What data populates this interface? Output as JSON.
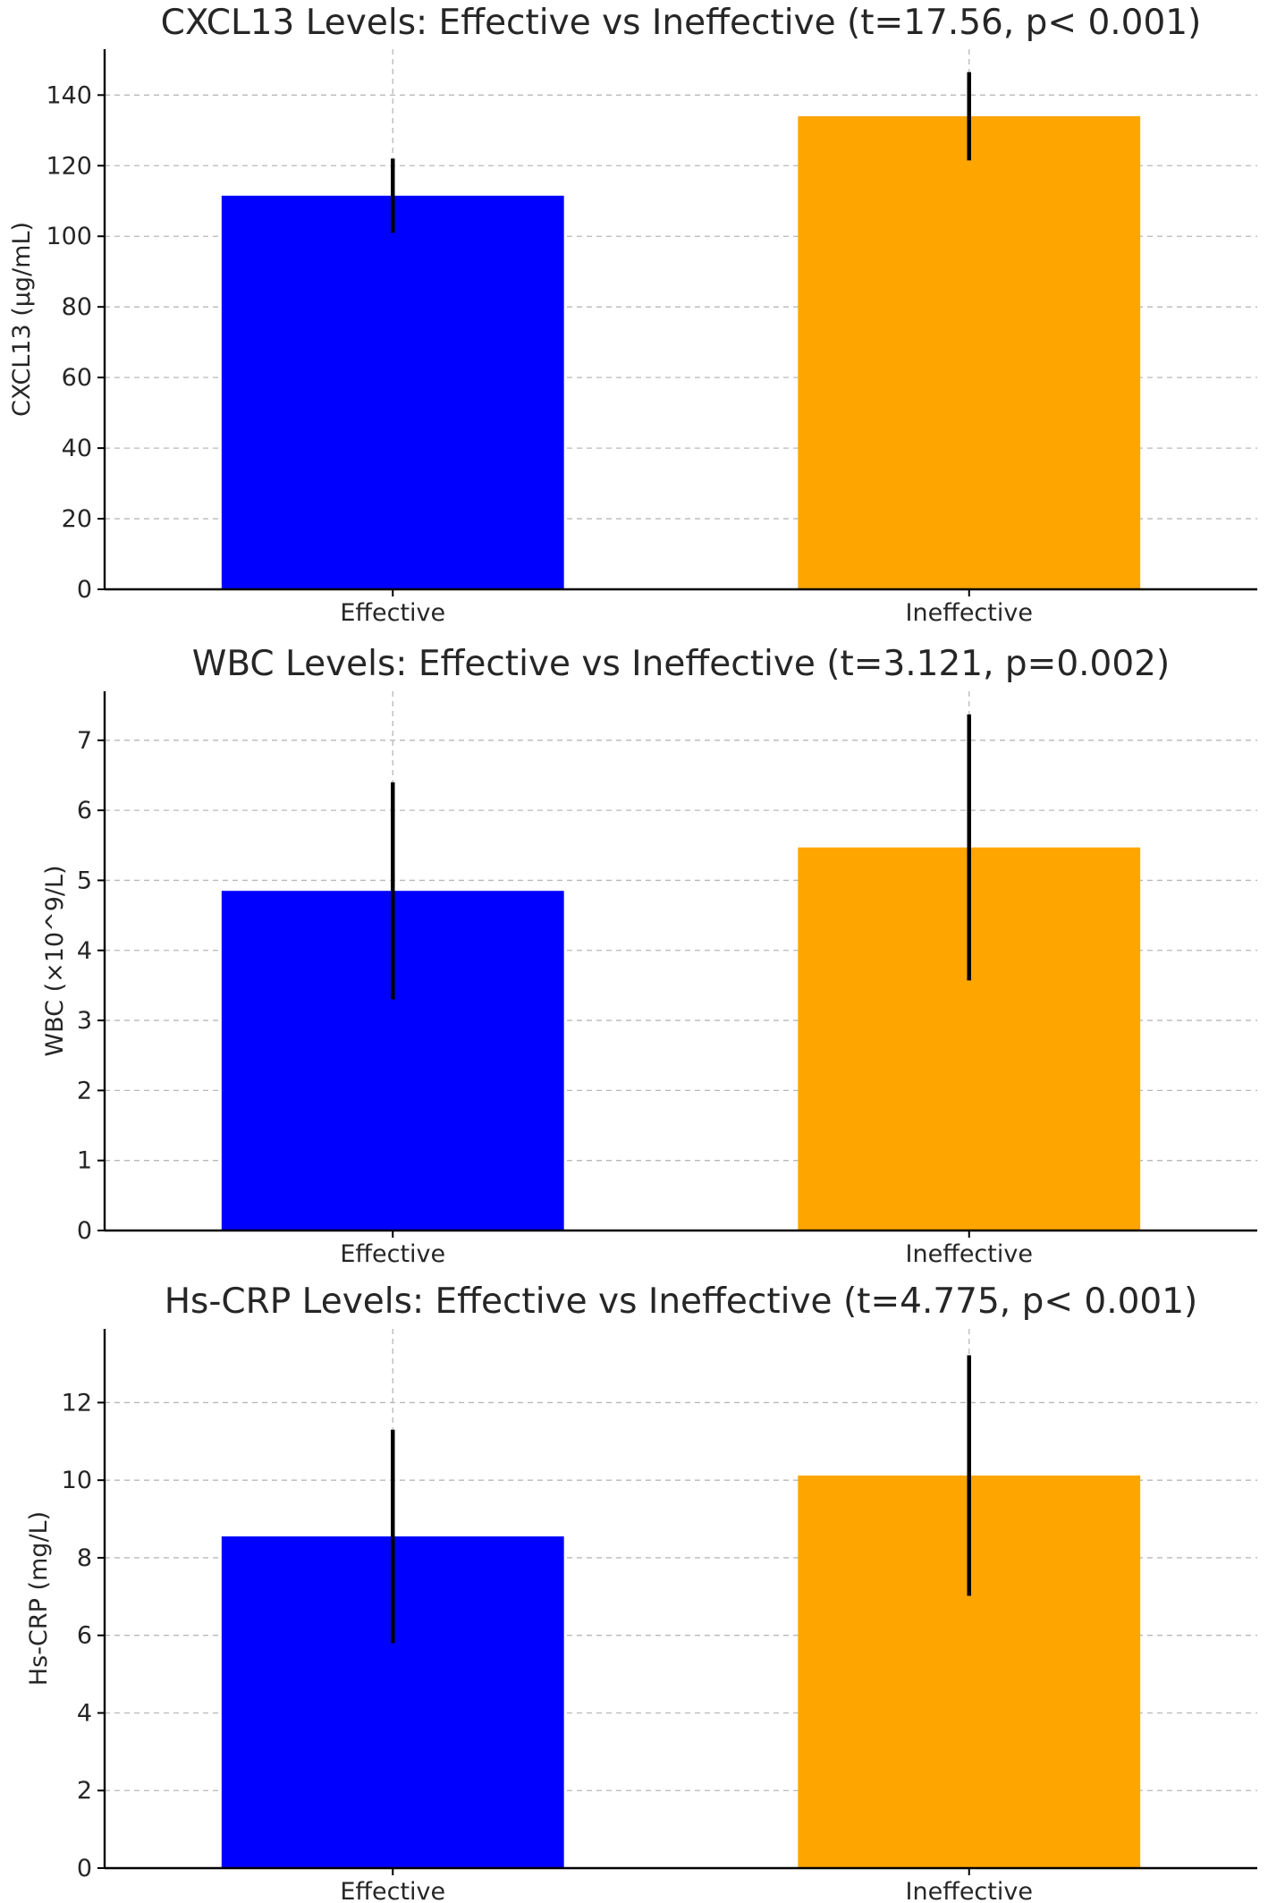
{
  "chart_data": [
    {
      "type": "bar",
      "title": "CXCL13 Levels: Effective vs Ineffective (t=17.56, p< 0.001)",
      "xlabel": "",
      "ylabel": "CXCL13 (μg/mL)",
      "categories": [
        "Effective",
        "Ineffective"
      ],
      "values": [
        111.5,
        134.0
      ],
      "error": [
        10.5,
        12.5
      ],
      "colors": [
        "#0000ff",
        "#ffa500"
      ],
      "ylim": [
        0,
        153
      ],
      "yticks": [
        0,
        20,
        40,
        60,
        80,
        100,
        120,
        140
      ],
      "grid": true
    },
    {
      "type": "bar",
      "title": "WBC Levels: Effective vs Ineffective (t=3.121, p=0.002)",
      "xlabel": "",
      "ylabel": "WBC (×10^9/L)",
      "categories": [
        "Effective",
        "Ineffective"
      ],
      "values": [
        4.85,
        5.47
      ],
      "error": [
        1.55,
        1.9
      ],
      "colors": [
        "#0000ff",
        "#ffa500"
      ],
      "ylim": [
        0,
        7.7
      ],
      "yticks": [
        0,
        1,
        2,
        3,
        4,
        5,
        6,
        7
      ],
      "grid": true
    },
    {
      "type": "bar",
      "title": "Hs-CRP Levels: Effective vs Ineffective (t=4.775, p< 0.001)",
      "xlabel": "",
      "ylabel": "Hs-CRP (mg/L)",
      "categories": [
        "Effective",
        "Ineffective"
      ],
      "values": [
        8.55,
        10.12
      ],
      "error": [
        2.75,
        3.1
      ],
      "colors": [
        "#0000ff",
        "#ffa500"
      ],
      "ylim": [
        0,
        13.9
      ],
      "yticks": [
        0,
        2,
        4,
        6,
        8,
        10,
        12
      ],
      "grid": true
    }
  ]
}
